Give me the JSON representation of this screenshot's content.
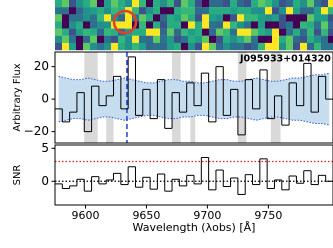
{
  "chart_data": [
    {
      "type": "step",
      "ylabel": "Arbitrary Flux",
      "annotation": "J095933+014320",
      "annotation_color": "#1f3fe0",
      "xlim": [
        9575,
        9803
      ],
      "ylim": [
        -27,
        29
      ],
      "yticks": [
        {
          "value": -20,
          "label": "−20"
        },
        0,
        20
      ],
      "x": [
        9578,
        9584,
        9590,
        9596,
        9602,
        9608,
        9614,
        9620,
        9626,
        9632,
        9638,
        9644,
        9650,
        9656,
        9662,
        9668,
        9674,
        9680,
        9686,
        9692,
        9698,
        9704,
        9710,
        9716,
        9722,
        9728,
        9734,
        9740,
        9746,
        9752,
        9758,
        9764,
        9770,
        9776,
        9782,
        9788,
        9794,
        9800
      ],
      "series": [
        {
          "color": "#000000",
          "values": [
            -6,
            -14,
            -8,
            4,
            -20,
            8,
            -4,
            2,
            14,
            -6,
            26,
            -10,
            6,
            -12,
            12,
            -18,
            4,
            -8,
            10,
            -4,
            16,
            -14,
            20,
            -10,
            6,
            -22,
            12,
            -6,
            18,
            -12,
            2,
            -16,
            10,
            -4,
            22,
            -8,
            14,
            0
          ]
        }
      ],
      "error": {
        "color": "#3a5fcd",
        "fill": "#c6dcef",
        "values": [
          14,
          13,
          12,
          12,
          13,
          12,
          11,
          11,
          12,
          13,
          12,
          11,
          10,
          10,
          11,
          12,
          12,
          11,
          11,
          10,
          10,
          11,
          12,
          12,
          11,
          11,
          12,
          13,
          12,
          11,
          11,
          12,
          13,
          13,
          14,
          15,
          15,
          16
        ]
      },
      "sky_bands": [
        [
          9599,
          9610
        ],
        [
          9617,
          9623
        ],
        [
          9671,
          9678
        ],
        [
          9686,
          9690
        ],
        [
          9725,
          9732
        ],
        [
          9752,
          9760
        ]
      ],
      "sky_color": "#d9d9d9",
      "line_marker": {
        "value": 9634,
        "color": "#1f3fd0"
      }
    },
    {
      "type": "step",
      "ylabel": "SNR",
      "xlabel": "Wavelength (λobs) [Å]",
      "xlim": [
        9575,
        9803
      ],
      "ylim": [
        -3.6,
        5.5
      ],
      "xticks": [
        9600,
        9650,
        9700,
        9750
      ],
      "yticks": [
        0,
        5
      ],
      "x": [
        9578,
        9584,
        9590,
        9596,
        9602,
        9608,
        9614,
        9620,
        9626,
        9632,
        9638,
        9644,
        9650,
        9656,
        9662,
        9668,
        9674,
        9680,
        9686,
        9692,
        9698,
        9704,
        9710,
        9716,
        9722,
        9728,
        9734,
        9740,
        9746,
        9752,
        9758,
        9764,
        9770,
        9776,
        9782,
        9788,
        9794,
        9800
      ],
      "series": [
        {
          "color": "#000000",
          "values": [
            -0.4,
            -1.1,
            -0.7,
            0.3,
            -1.5,
            0.7,
            -0.4,
            0.2,
            1.2,
            -0.5,
            2.2,
            -0.9,
            0.6,
            -1.2,
            1.1,
            -1.5,
            0.3,
            -0.7,
            0.9,
            -0.4,
            3.6,
            -1.3,
            1.7,
            -0.8,
            0.5,
            -2.0,
            1.0,
            -0.5,
            3.4,
            -1.1,
            0.2,
            -1.3,
            0.8,
            -0.3,
            1.6,
            -0.5,
            0.9,
            0.0
          ]
        }
      ],
      "hlines": [
        {
          "value": 3,
          "color": "#e41a1c"
        },
        {
          "value": 0,
          "color": "#000000"
        }
      ]
    }
  ]
}
